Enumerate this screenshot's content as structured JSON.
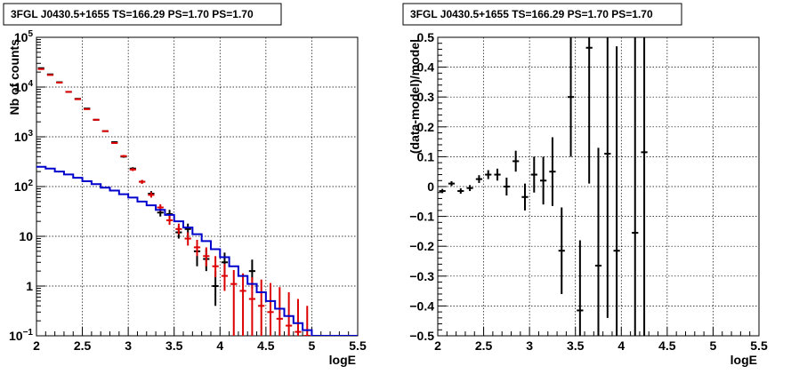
{
  "chart_data": [
    {
      "type": "scatter",
      "title": "3FGL J0430.5+1655 TS=166.29 PS=1.70 PS=1.70",
      "xlabel": "logE",
      "ylabel": "Nb of counts",
      "xlim": [
        2,
        5.5
      ],
      "ylim": [
        0.1,
        100000
      ],
      "y_scale": "log",
      "grid": true,
      "x_ticks": [
        "2",
        "2.5",
        "3",
        "3.5",
        "4",
        "4.5",
        "5",
        "5.5"
      ],
      "y_ticks": [
        "10−1",
        "1",
        "10",
        "10²",
        "10³",
        "10⁴",
        "10⁵"
      ],
      "y_tick_labels": [
        {
          "text": "1",
          "v": 1
        },
        {
          "text": "10",
          "v": 10
        }
      ],
      "y_power_labels": [
        {
          "base": "10",
          "exp": "−1",
          "v": 0.1
        },
        {
          "base": "10",
          "exp": "2",
          "v": 100
        },
        {
          "base": "10",
          "exp": "3",
          "v": 1000
        },
        {
          "base": "10",
          "exp": "4",
          "v": 10000
        },
        {
          "base": "10",
          "exp": "5",
          "v": 100000
        }
      ],
      "series": [
        {
          "color": "#000000",
          "style": "errorbars",
          "points": [
            {
              "x": 2.05,
              "y": 24000,
              "lo": 23700,
              "hi": 24300
            },
            {
              "x": 2.15,
              "y": 18000,
              "lo": 17700,
              "hi": 18300
            },
            {
              "x": 2.25,
              "y": 12500,
              "lo": 12300,
              "hi": 12700
            },
            {
              "x": 2.35,
              "y": 8000,
              "lo": 7850,
              "hi": 8150
            },
            {
              "x": 2.45,
              "y": 5800,
              "lo": 5700,
              "hi": 5900
            },
            {
              "x": 2.55,
              "y": 3700,
              "lo": 3620,
              "hi": 3780
            },
            {
              "x": 2.65,
              "y": 2200,
              "lo": 2150,
              "hi": 2250
            },
            {
              "x": 2.75,
              "y": 1300,
              "lo": 1260,
              "hi": 1340
            },
            {
              "x": 2.85,
              "y": 780,
              "lo": 750,
              "hi": 810
            },
            {
              "x": 2.95,
              "y": 400,
              "lo": 380,
              "hi": 420
            },
            {
              "x": 3.05,
              "y": 230,
              "lo": 215,
              "hi": 245
            },
            {
              "x": 3.15,
              "y": 125,
              "lo": 114,
              "hi": 136
            },
            {
              "x": 3.25,
              "y": 72,
              "lo": 63,
              "hi": 81
            },
            {
              "x": 3.35,
              "y": 30,
              "lo": 25,
              "hi": 36
            },
            {
              "x": 3.45,
              "y": 28,
              "lo": 23,
              "hi": 34
            },
            {
              "x": 3.55,
              "y": 12,
              "lo": 9,
              "hi": 16
            },
            {
              "x": 3.65,
              "y": 14,
              "lo": 10.5,
              "hi": 18
            },
            {
              "x": 3.75,
              "y": 5,
              "lo": 2.5,
              "hi": 7.5
            },
            {
              "x": 3.85,
              "y": 3.5,
              "lo": 2,
              "hi": 5.5
            },
            {
              "x": 3.95,
              "y": 1,
              "lo": 0.4,
              "hi": 2
            },
            {
              "x": 4.05,
              "y": 3,
              "lo": 1.7,
              "hi": 4.7
            },
            {
              "x": 4.35,
              "y": 2,
              "lo": 0.9,
              "hi": 3.4
            }
          ]
        },
        {
          "color": "#dd0000",
          "style": "errorbars",
          "points": [
            {
              "x": 2.05,
              "y": 23000,
              "lo": 22700,
              "hi": 23300
            },
            {
              "x": 2.15,
              "y": 17500,
              "lo": 17200,
              "hi": 17800
            },
            {
              "x": 2.25,
              "y": 12300,
              "lo": 12100,
              "hi": 12500
            },
            {
              "x": 2.35,
              "y": 8000,
              "lo": 7850,
              "hi": 8150
            },
            {
              "x": 2.45,
              "y": 5700,
              "lo": 5600,
              "hi": 5800
            },
            {
              "x": 2.55,
              "y": 3600,
              "lo": 3520,
              "hi": 3680
            },
            {
              "x": 2.65,
              "y": 2200,
              "lo": 2150,
              "hi": 2250
            },
            {
              "x": 2.75,
              "y": 1300,
              "lo": 1260,
              "hi": 1340
            },
            {
              "x": 2.85,
              "y": 750,
              "lo": 720,
              "hi": 780
            },
            {
              "x": 2.95,
              "y": 410,
              "lo": 390,
              "hi": 430
            },
            {
              "x": 3.05,
              "y": 220,
              "lo": 205,
              "hi": 235
            },
            {
              "x": 3.15,
              "y": 125,
              "lo": 114,
              "hi": 136
            },
            {
              "x": 3.25,
              "y": 68,
              "lo": 60,
              "hi": 77
            },
            {
              "x": 3.35,
              "y": 38,
              "lo": 32,
              "hi": 44
            },
            {
              "x": 3.45,
              "y": 21,
              "lo": 17,
              "hi": 26
            },
            {
              "x": 3.55,
              "y": 14,
              "lo": 11,
              "hi": 18
            },
            {
              "x": 3.65,
              "y": 9,
              "lo": 6.5,
              "hi": 12
            },
            {
              "x": 3.75,
              "y": 6,
              "lo": 4,
              "hi": 8.5
            },
            {
              "x": 3.85,
              "y": 4,
              "lo": 2.5,
              "hi": 6
            },
            {
              "x": 3.95,
              "y": 2.5,
              "lo": 1.5,
              "hi": 4
            },
            {
              "x": 4.05,
              "y": 1.6,
              "lo": 0.8,
              "hi": 2.8
            },
            {
              "x": 4.15,
              "y": 1.1,
              "lo": 0.1,
              "hi": 2.1
            },
            {
              "x": 4.25,
              "y": 0.8,
              "lo": 0.1,
              "hi": 1.8
            },
            {
              "x": 4.35,
              "y": 0.55,
              "lo": 0.1,
              "hi": 1.5
            },
            {
              "x": 4.45,
              "y": 0.4,
              "lo": 0.1,
              "hi": 1.35
            },
            {
              "x": 4.55,
              "y": 0.3,
              "lo": 0.1,
              "hi": 1.15
            },
            {
              "x": 4.65,
              "y": 0.22,
              "lo": 0.1,
              "hi": 0.95
            },
            {
              "x": 4.75,
              "y": 0.16,
              "lo": 0.1,
              "hi": 0.75
            },
            {
              "x": 4.85,
              "y": 0.12,
              "lo": 0.1,
              "hi": 0.55
            },
            {
              "x": 4.95,
              "y": 0.1,
              "lo": 0.1,
              "hi": 0.4
            }
          ]
        },
        {
          "color": "#0000cc",
          "style": "step",
          "bin_width": 0.1,
          "points": [
            {
              "x": 2.05,
              "y": 250
            },
            {
              "x": 2.15,
              "y": 230
            },
            {
              "x": 2.25,
              "y": 200
            },
            {
              "x": 2.35,
              "y": 175
            },
            {
              "x": 2.45,
              "y": 150
            },
            {
              "x": 2.55,
              "y": 128
            },
            {
              "x": 2.65,
              "y": 112
            },
            {
              "x": 2.75,
              "y": 95
            },
            {
              "x": 2.85,
              "y": 83
            },
            {
              "x": 2.95,
              "y": 70
            },
            {
              "x": 3.05,
              "y": 60
            },
            {
              "x": 3.15,
              "y": 50
            },
            {
              "x": 3.25,
              "y": 42
            },
            {
              "x": 3.35,
              "y": 34
            },
            {
              "x": 3.45,
              "y": 27
            },
            {
              "x": 3.55,
              "y": 20
            },
            {
              "x": 3.65,
              "y": 15
            },
            {
              "x": 3.75,
              "y": 11
            },
            {
              "x": 3.85,
              "y": 8
            },
            {
              "x": 3.95,
              "y": 5.5
            },
            {
              "x": 4.05,
              "y": 3.8
            },
            {
              "x": 4.15,
              "y": 2.5
            },
            {
              "x": 4.25,
              "y": 1.6
            },
            {
              "x": 4.35,
              "y": 1.1
            },
            {
              "x": 4.45,
              "y": 0.75
            },
            {
              "x": 4.55,
              "y": 0.5
            },
            {
              "x": 4.65,
              "y": 0.35
            },
            {
              "x": 4.75,
              "y": 0.25
            },
            {
              "x": 4.85,
              "y": 0.18
            },
            {
              "x": 4.95,
              "y": 0.13
            },
            {
              "x": 5.05,
              "y": 0.1
            },
            {
              "x": 5.15,
              "y": 0.1
            },
            {
              "x": 5.25,
              "y": 0.1
            },
            {
              "x": 5.35,
              "y": 0.1
            },
            {
              "x": 5.45,
              "y": 0.1
            }
          ]
        }
      ]
    },
    {
      "type": "scatter",
      "title": "3FGL J0430.5+1655 TS=166.29 PS=1.70 PS=1.70",
      "xlabel": "logE",
      "ylabel": "(data-model)/model",
      "xlim": [
        2,
        5.5
      ],
      "ylim": [
        -0.5,
        0.5
      ],
      "grid": true,
      "x_ticks": [
        "2",
        "2.5",
        "3",
        "3.5",
        "4",
        "4.5",
        "5",
        "5.5"
      ],
      "y_ticks": [
        "−0.5",
        "−0.4",
        "−0.3",
        "−0.2",
        "−0.1",
        "0",
        "0.1",
        "0.2",
        "0.3",
        "0.4",
        "0.5"
      ],
      "series": [
        {
          "color": "#000000",
          "style": "errorbars",
          "points": [
            {
              "x": 2.05,
              "y": -0.015,
              "lo": -0.022,
              "hi": -0.008
            },
            {
              "x": 2.15,
              "y": 0.01,
              "lo": 0.002,
              "hi": 0.018
            },
            {
              "x": 2.25,
              "y": -0.015,
              "lo": -0.024,
              "hi": -0.006
            },
            {
              "x": 2.35,
              "y": -0.005,
              "lo": -0.015,
              "hi": 0.005
            },
            {
              "x": 2.45,
              "y": 0.025,
              "lo": 0.012,
              "hi": 0.038
            },
            {
              "x": 2.55,
              "y": 0.04,
              "lo": 0.025,
              "hi": 0.055
            },
            {
              "x": 2.65,
              "y": 0.04,
              "lo": 0.02,
              "hi": 0.06
            },
            {
              "x": 2.75,
              "y": 0.0,
              "lo": -0.03,
              "hi": 0.03
            },
            {
              "x": 2.85,
              "y": 0.085,
              "lo": 0.05,
              "hi": 0.12
            },
            {
              "x": 2.95,
              "y": -0.035,
              "lo": -0.08,
              "hi": 0.01
            },
            {
              "x": 3.05,
              "y": 0.04,
              "lo": -0.02,
              "hi": 0.1
            },
            {
              "x": 3.15,
              "y": 0.02,
              "lo": -0.06,
              "hi": 0.1
            },
            {
              "x": 3.25,
              "y": 0.05,
              "lo": -0.065,
              "hi": 0.165
            },
            {
              "x": 3.35,
              "y": -0.215,
              "lo": -0.36,
              "hi": -0.07
            },
            {
              "x": 3.45,
              "y": 0.3,
              "lo": 0.1,
              "hi": 0.5
            },
            {
              "x": 3.55,
              "y": -0.415,
              "lo": -0.5,
              "hi": -0.18
            },
            {
              "x": 3.65,
              "y": 0.465,
              "lo": 0.01,
              "hi": 0.5
            },
            {
              "x": 3.75,
              "y": -0.265,
              "lo": -0.5,
              "hi": 0.13
            },
            {
              "x": 3.85,
              "y": 0.11,
              "lo": -0.44,
              "hi": 0.5
            },
            {
              "x": 3.95,
              "y": -0.215,
              "lo": -0.5,
              "hi": 0.47
            },
            {
              "x": 4.15,
              "y": -0.155,
              "lo": -0.5,
              "hi": 0.5
            },
            {
              "x": 4.25,
              "y": 0.115,
              "lo": -0.5,
              "hi": 0.5
            }
          ]
        }
      ]
    }
  ]
}
